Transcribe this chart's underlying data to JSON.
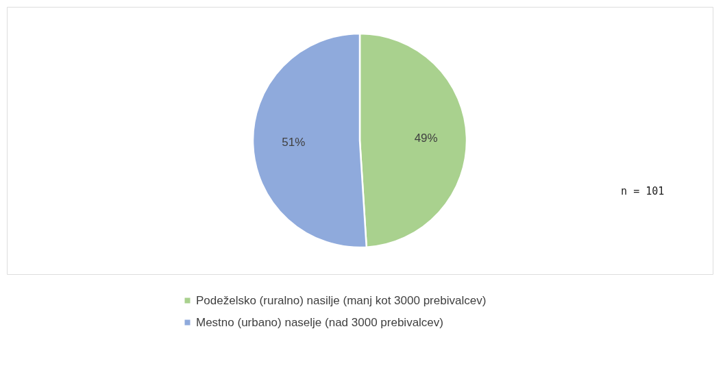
{
  "chart_data": {
    "type": "pie",
    "categories": [
      "Podeželsko (ruralno) nasilje (manj kot 3000 prebivalcev)",
      "Mestno (urbano) naselje (nad 3000 prebivalcev)"
    ],
    "values": [
      49,
      51
    ],
    "colors": [
      "#a9d18e",
      "#8faadc"
    ],
    "value_labels": [
      "49%",
      "51%"
    ],
    "legend": "bottom",
    "annotations": [
      "n = 101"
    ]
  }
}
